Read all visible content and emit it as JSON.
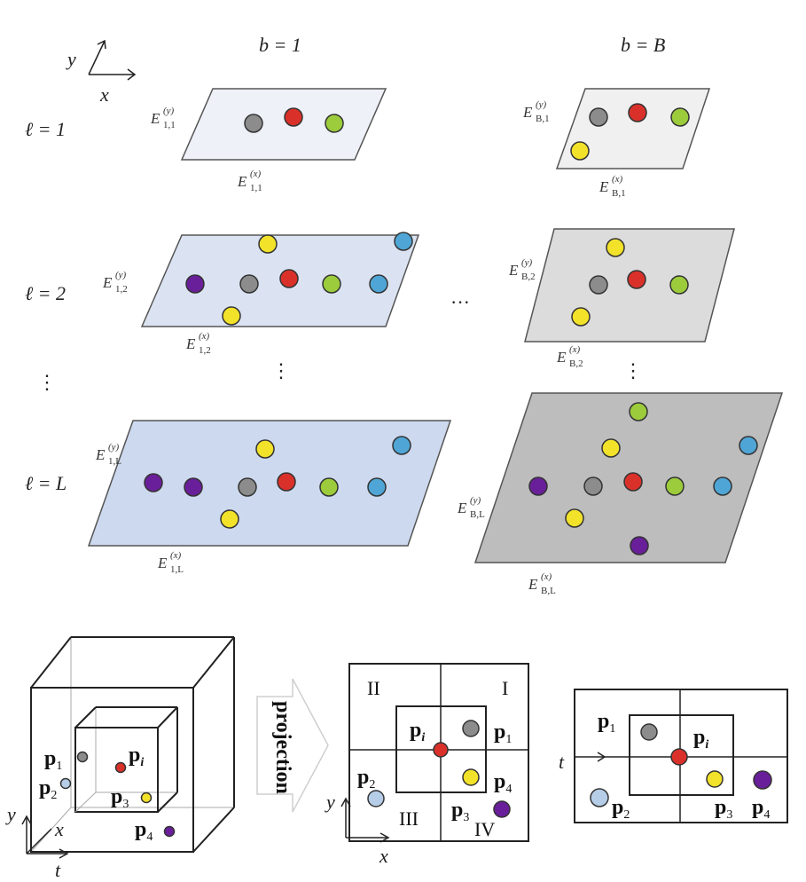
{
  "columns": {
    "first": "b = 1",
    "last": "b = B",
    "ellipsis": "···"
  },
  "axes_top": {
    "y": "y",
    "x": "x"
  },
  "rows": {
    "r1": "ℓ = 1",
    "r2": "ℓ = 2",
    "rL": "ℓ = L",
    "vdots": "⋮"
  },
  "embeddings": {
    "e11x": {
      "base": "E",
      "sup": "(x)",
      "sub": "1,1"
    },
    "e11y": {
      "base": "E",
      "sup": "(y)",
      "sub": "1,1"
    },
    "e12x": {
      "base": "E",
      "sup": "(x)",
      "sub": "1,2"
    },
    "e12y": {
      "base": "E",
      "sup": "(y)",
      "sub": "1,2"
    },
    "e1Lx": {
      "base": "E",
      "sup": "(x)",
      "sub": "1,L"
    },
    "e1Ly": {
      "base": "E",
      "sup": "(y)",
      "sub": "1,L"
    },
    "eB1x": {
      "base": "E",
      "sup": "(x)",
      "sub": "B,1"
    },
    "eB1y": {
      "base": "E",
      "sup": "(y)",
      "sub": "B,1"
    },
    "eB2x": {
      "base": "E",
      "sup": "(x)",
      "sub": "B,2"
    },
    "eB2y": {
      "base": "E",
      "sup": "(y)",
      "sub": "B,2"
    },
    "eBLx": {
      "base": "E",
      "sup": "(x)",
      "sub": "B,L"
    },
    "eBLy": {
      "base": "E",
      "sup": "(y)",
      "sub": "B,L"
    }
  },
  "colors": {
    "red": "#d9312a",
    "gray": "#8c8c8c",
    "green": "#9ccc3c",
    "yellow": "#f2e22a",
    "blue": "#4fa6d6",
    "purple": "#6a1f9a",
    "lightblue": "#b6cde8",
    "plane_light": "#eef1f8",
    "plane_mid": "#dbe3f2",
    "plane_dark": "#cdd9ee",
    "plane_gray_light": "#f0f0f0",
    "plane_gray_mid": "#dcdcdc",
    "plane_gray_dark": "#bdbdbd"
  },
  "bottom": {
    "arrow_label": "projection",
    "cube": {
      "p1": {
        "base": "p",
        "sub": "1"
      },
      "p2": {
        "base": "p",
        "sub": "2"
      },
      "p3": {
        "base": "p",
        "sub": "3"
      },
      "p4": {
        "base": "p",
        "sub": "4"
      },
      "pi": {
        "base": "p",
        "sub": "i"
      },
      "ax_y": "y",
      "ax_x": "x",
      "ax_t": "t"
    },
    "quad": {
      "q1": "I",
      "q2": "II",
      "q3": "III",
      "q4": "IV",
      "p1": {
        "base": "p",
        "sub": "1"
      },
      "p2": {
        "base": "p",
        "sub": "2"
      },
      "p3": {
        "base": "p",
        "sub": "3"
      },
      "p4": {
        "base": "p",
        "sub": "4"
      },
      "pi": {
        "base": "p",
        "sub": "i"
      },
      "ax_y": "y",
      "ax_x": "x"
    },
    "tproj": {
      "p1": {
        "base": "p",
        "sub": "1"
      },
      "p2": {
        "base": "p",
        "sub": "2"
      },
      "p3": {
        "base": "p",
        "sub": "3"
      },
      "p4": {
        "base": "p",
        "sub": "4"
      },
      "pi": {
        "base": "p",
        "sub": "i"
      },
      "ax_t": "t"
    }
  }
}
